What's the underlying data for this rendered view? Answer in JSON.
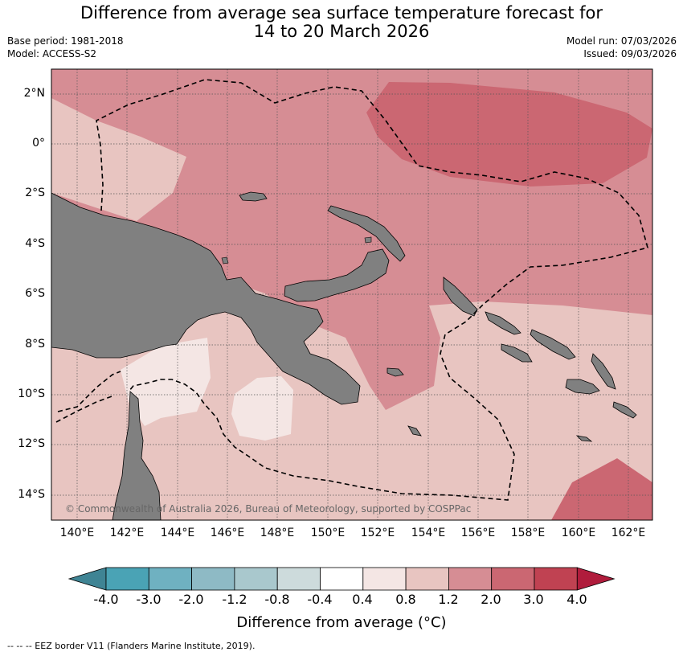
{
  "header": {
    "title_line1": "Difference from average sea surface temperature forecast for",
    "title_line2": "14 to 20 March 2026",
    "base_period": "Base period: 1981-2018",
    "model": "Model: ACCESS-S2",
    "model_run": "Model run: 07/03/2026",
    "issued": "Issued: 09/03/2026"
  },
  "map": {
    "lat_labels": [
      "2°N",
      "0°",
      "2°S",
      "4°S",
      "6°S",
      "8°S",
      "10°S",
      "12°S",
      "14°S"
    ],
    "lon_labels": [
      "140°E",
      "142°E",
      "144°E",
      "146°E",
      "148°E",
      "150°E",
      "152°E",
      "154°E",
      "156°E",
      "158°E",
      "160°E",
      "162°E"
    ],
    "copyright": "© Commonwealth of Australia 2026, Bureau of Meteorology, supported by COSPPac",
    "land_color": "#808080"
  },
  "colorbar": {
    "labels": [
      "-4.0",
      "-3.0",
      "-2.0",
      "-1.2",
      "-0.8",
      "-0.4",
      "0.4",
      "0.8",
      "1.2",
      "2.0",
      "3.0",
      "4.0"
    ],
    "colors": [
      "#3f8494",
      "#4aa3b5",
      "#6fb1c1",
      "#8ebac5",
      "#a9c8cd",
      "#cddbdc",
      "#ffffff",
      "#f4e6e4",
      "#e8c5c1",
      "#d68d94",
      "#cb6772",
      "#c04252",
      "#b01c3c"
    ],
    "title": "Difference from average (°C)"
  },
  "footer": {
    "legend": "--  --  -- EEZ border V11 (Flanders Marine Institute, 2019)."
  }
}
